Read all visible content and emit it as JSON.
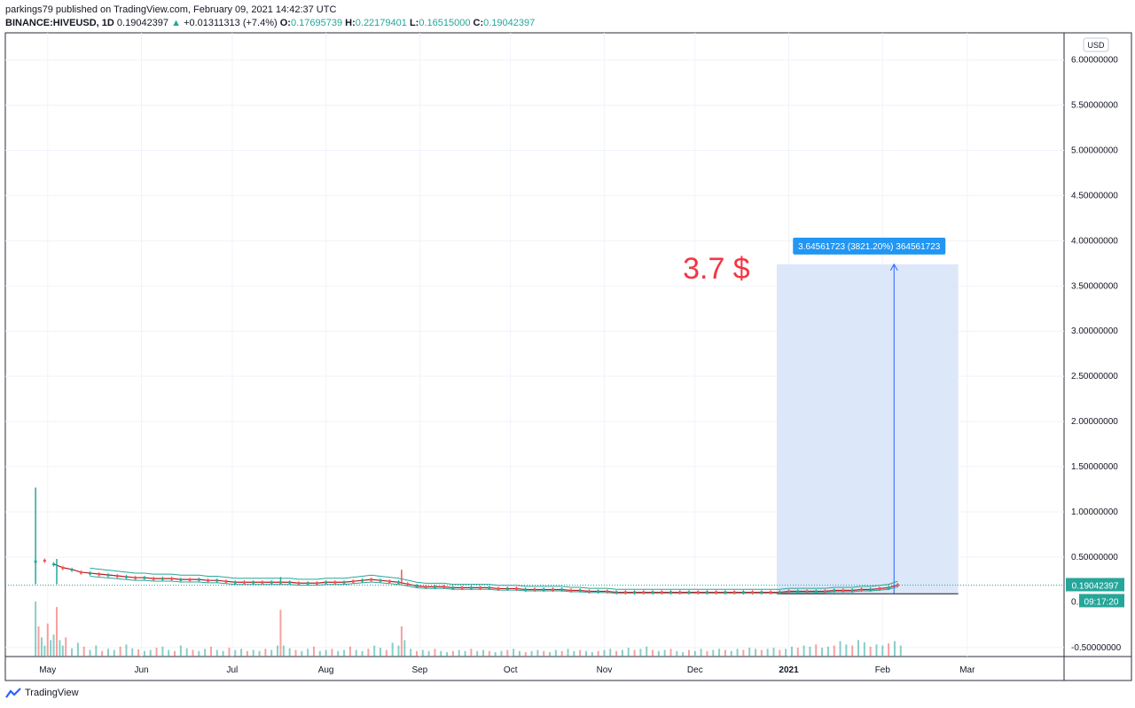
{
  "header": {
    "publisher": "parkings79 published on TradingView.com, February 09, 2021 14:42:37 UTC",
    "symbol": "BINANCE:HIVEUSD, 1D",
    "last": "0.19042397",
    "change_arrow": "▲",
    "change": "+0.01311313 (+7.4%)",
    "o_label": "O:",
    "o_value": "0.17695739",
    "h_label": "H:",
    "h_value": "0.22179401",
    "l_label": "L:",
    "l_value": "0.16515000",
    "c_label": "C:",
    "c_value": "0.19042397"
  },
  "currency_button": "USD",
  "footer": {
    "brand": "TradingView"
  },
  "colors": {
    "up": "#26a69a",
    "down": "#ef5350",
    "ma": "#b71c1c",
    "band": "#26a69a",
    "measure_fill": "#d6e4f8",
    "measure_line": "#2962ff",
    "price_tag": "#26a69a",
    "annotation": "#f23645"
  },
  "chart_data": {
    "type": "candlestick",
    "y_axis_labels": [
      "6.00000000",
      "5.50000000",
      "5.00000000",
      "4.50000000",
      "4.00000000",
      "3.50000000",
      "3.00000000",
      "2.50000000",
      "2.00000000",
      "1.50000000",
      "1.00000000",
      "0.50000000",
      "-0.50000000"
    ],
    "y_axis_values": [
      6.0,
      5.5,
      5.0,
      4.5,
      4.0,
      3.5,
      3.0,
      2.5,
      2.0,
      1.5,
      1.0,
      0.5,
      -0.5
    ],
    "ylim": [
      -0.6,
      6.3
    ],
    "x_axis_labels": [
      "May",
      "Jun",
      "Jul",
      "Aug",
      "Sep",
      "Oct",
      "Nov",
      "Dec",
      "2021",
      "Feb",
      "Mar"
    ],
    "x_axis_days": [
      4,
      35,
      65,
      96,
      127,
      157,
      188,
      218,
      249,
      280,
      308
    ],
    "xlim": [
      -10,
      340
    ],
    "price_tag": "0.19042397",
    "countdown_tag_prefix": "0.",
    "countdown": "09:17:20",
    "last_price": 0.19042397,
    "annotation_text": "3.7 $",
    "measure": {
      "label": "3.64561723 (3821.20%) 364561723",
      "day_start": 245,
      "day_end": 305,
      "from_price": 0.095,
      "to_price": 3.74
    },
    "price_series": [
      [
        0,
        0.45
      ],
      [
        3,
        0.46
      ],
      [
        6,
        0.42
      ],
      [
        9,
        0.38
      ],
      [
        12,
        0.36
      ],
      [
        15,
        0.33
      ],
      [
        18,
        0.32
      ],
      [
        21,
        0.31
      ],
      [
        24,
        0.3
      ],
      [
        27,
        0.29
      ],
      [
        30,
        0.28
      ],
      [
        33,
        0.27
      ],
      [
        36,
        0.27
      ],
      [
        39,
        0.26
      ],
      [
        42,
        0.26
      ],
      [
        45,
        0.26
      ],
      [
        48,
        0.25
      ],
      [
        51,
        0.25
      ],
      [
        54,
        0.25
      ],
      [
        57,
        0.24
      ],
      [
        60,
        0.24
      ],
      [
        63,
        0.23
      ],
      [
        66,
        0.22
      ],
      [
        69,
        0.22
      ],
      [
        72,
        0.22
      ],
      [
        75,
        0.22
      ],
      [
        78,
        0.22
      ],
      [
        81,
        0.22
      ],
      [
        84,
        0.22
      ],
      [
        87,
        0.21
      ],
      [
        90,
        0.21
      ],
      [
        93,
        0.21
      ],
      [
        96,
        0.22
      ],
      [
        99,
        0.22
      ],
      [
        102,
        0.22
      ],
      [
        105,
        0.23
      ],
      [
        108,
        0.24
      ],
      [
        111,
        0.25
      ],
      [
        114,
        0.24
      ],
      [
        117,
        0.23
      ],
      [
        120,
        0.22
      ],
      [
        123,
        0.2
      ],
      [
        126,
        0.18
      ],
      [
        129,
        0.17
      ],
      [
        132,
        0.17
      ],
      [
        135,
        0.17
      ],
      [
        138,
        0.16
      ],
      [
        141,
        0.16
      ],
      [
        144,
        0.16
      ],
      [
        147,
        0.16
      ],
      [
        150,
        0.16
      ],
      [
        153,
        0.15
      ],
      [
        156,
        0.15
      ],
      [
        159,
        0.15
      ],
      [
        162,
        0.14
      ],
      [
        165,
        0.14
      ],
      [
        168,
        0.14
      ],
      [
        171,
        0.14
      ],
      [
        174,
        0.14
      ],
      [
        177,
        0.13
      ],
      [
        180,
        0.13
      ],
      [
        183,
        0.12
      ],
      [
        186,
        0.12
      ],
      [
        189,
        0.12
      ],
      [
        192,
        0.11
      ],
      [
        195,
        0.11
      ],
      [
        198,
        0.11
      ],
      [
        201,
        0.11
      ],
      [
        204,
        0.11
      ],
      [
        207,
        0.11
      ],
      [
        210,
        0.11
      ],
      [
        213,
        0.11
      ],
      [
        216,
        0.11
      ],
      [
        219,
        0.11
      ],
      [
        222,
        0.11
      ],
      [
        225,
        0.11
      ],
      [
        228,
        0.11
      ],
      [
        231,
        0.11
      ],
      [
        234,
        0.11
      ],
      [
        237,
        0.11
      ],
      [
        240,
        0.11
      ],
      [
        243,
        0.11
      ],
      [
        246,
        0.11
      ],
      [
        249,
        0.12
      ],
      [
        252,
        0.12
      ],
      [
        255,
        0.12
      ],
      [
        258,
        0.12
      ],
      [
        261,
        0.12
      ],
      [
        264,
        0.13
      ],
      [
        267,
        0.13
      ],
      [
        270,
        0.13
      ],
      [
        273,
        0.14
      ],
      [
        276,
        0.14
      ],
      [
        279,
        0.15
      ],
      [
        282,
        0.16
      ],
      [
        285,
        0.19
      ]
    ],
    "spikes": [
      [
        0,
        1.27
      ],
      [
        7,
        0.48
      ],
      [
        81,
        0.28
      ],
      [
        121,
        0.36
      ]
    ],
    "volumes": [
      [
        0,
        1.0
      ],
      [
        1,
        0.55
      ],
      [
        2,
        0.35
      ],
      [
        3,
        0.2
      ],
      [
        4,
        0.6
      ],
      [
        5,
        0.3
      ],
      [
        6,
        0.4
      ],
      [
        7,
        0.9
      ],
      [
        8,
        0.3
      ],
      [
        9,
        0.2
      ],
      [
        10,
        0.35
      ],
      [
        12,
        0.15
      ],
      [
        14,
        0.25
      ],
      [
        16,
        0.18
      ],
      [
        18,
        0.12
      ],
      [
        20,
        0.2
      ],
      [
        22,
        0.1
      ],
      [
        24,
        0.14
      ],
      [
        26,
        0.12
      ],
      [
        28,
        0.18
      ],
      [
        30,
        0.22
      ],
      [
        32,
        0.15
      ],
      [
        34,
        0.13
      ],
      [
        36,
        0.1
      ],
      [
        38,
        0.12
      ],
      [
        40,
        0.16
      ],
      [
        42,
        0.18
      ],
      [
        44,
        0.12
      ],
      [
        46,
        0.1
      ],
      [
        48,
        0.2
      ],
      [
        50,
        0.15
      ],
      [
        52,
        0.12
      ],
      [
        54,
        0.1
      ],
      [
        56,
        0.14
      ],
      [
        58,
        0.18
      ],
      [
        60,
        0.12
      ],
      [
        62,
        0.1
      ],
      [
        64,
        0.16
      ],
      [
        66,
        0.12
      ],
      [
        68,
        0.14
      ],
      [
        70,
        0.1
      ],
      [
        72,
        0.12
      ],
      [
        74,
        0.1
      ],
      [
        76,
        0.14
      ],
      [
        78,
        0.12
      ],
      [
        80,
        0.2
      ],
      [
        81,
        0.85
      ],
      [
        82,
        0.2
      ],
      [
        84,
        0.15
      ],
      [
        86,
        0.12
      ],
      [
        88,
        0.1
      ],
      [
        90,
        0.14
      ],
      [
        92,
        0.18
      ],
      [
        94,
        0.1
      ],
      [
        96,
        0.12
      ],
      [
        98,
        0.14
      ],
      [
        100,
        0.1
      ],
      [
        102,
        0.12
      ],
      [
        104,
        0.18
      ],
      [
        106,
        0.12
      ],
      [
        108,
        0.1
      ],
      [
        110,
        0.14
      ],
      [
        112,
        0.2
      ],
      [
        114,
        0.16
      ],
      [
        116,
        0.12
      ],
      [
        118,
        0.25
      ],
      [
        120,
        0.2
      ],
      [
        121,
        0.55
      ],
      [
        122,
        0.3
      ],
      [
        124,
        0.14
      ],
      [
        126,
        0.1
      ],
      [
        128,
        0.12
      ],
      [
        130,
        0.1
      ],
      [
        132,
        0.14
      ],
      [
        134,
        0.1
      ],
      [
        136,
        0.08
      ],
      [
        138,
        0.1
      ],
      [
        140,
        0.12
      ],
      [
        142,
        0.1
      ],
      [
        144,
        0.14
      ],
      [
        146,
        0.1
      ],
      [
        148,
        0.12
      ],
      [
        150,
        0.1
      ],
      [
        152,
        0.08
      ],
      [
        154,
        0.1
      ],
      [
        156,
        0.12
      ],
      [
        158,
        0.14
      ],
      [
        160,
        0.1
      ],
      [
        162,
        0.08
      ],
      [
        164,
        0.1
      ],
      [
        166,
        0.12
      ],
      [
        168,
        0.1
      ],
      [
        170,
        0.08
      ],
      [
        172,
        0.12
      ],
      [
        174,
        0.1
      ],
      [
        176,
        0.14
      ],
      [
        178,
        0.1
      ],
      [
        180,
        0.12
      ],
      [
        182,
        0.1
      ],
      [
        184,
        0.08
      ],
      [
        186,
        0.1
      ],
      [
        188,
        0.12
      ],
      [
        190,
        0.14
      ],
      [
        192,
        0.1
      ],
      [
        194,
        0.12
      ],
      [
        196,
        0.16
      ],
      [
        198,
        0.12
      ],
      [
        200,
        0.14
      ],
      [
        202,
        0.18
      ],
      [
        204,
        0.12
      ],
      [
        206,
        0.1
      ],
      [
        208,
        0.12
      ],
      [
        210,
        0.14
      ],
      [
        212,
        0.1
      ],
      [
        214,
        0.08
      ],
      [
        216,
        0.12
      ],
      [
        218,
        0.1
      ],
      [
        220,
        0.14
      ],
      [
        222,
        0.1
      ],
      [
        224,
        0.12
      ],
      [
        226,
        0.14
      ],
      [
        228,
        0.12
      ],
      [
        230,
        0.1
      ],
      [
        232,
        0.14
      ],
      [
        234,
        0.12
      ],
      [
        236,
        0.16
      ],
      [
        238,
        0.14
      ],
      [
        240,
        0.12
      ],
      [
        242,
        0.14
      ],
      [
        244,
        0.16
      ],
      [
        246,
        0.12
      ],
      [
        248,
        0.14
      ],
      [
        250,
        0.18
      ],
      [
        252,
        0.16
      ],
      [
        254,
        0.2
      ],
      [
        256,
        0.18
      ],
      [
        258,
        0.22
      ],
      [
        260,
        0.16
      ],
      [
        262,
        0.18
      ],
      [
        264,
        0.2
      ],
      [
        266,
        0.28
      ],
      [
        268,
        0.22
      ],
      [
        270,
        0.2
      ],
      [
        272,
        0.3
      ],
      [
        274,
        0.26
      ],
      [
        276,
        0.18
      ],
      [
        278,
        0.22
      ],
      [
        280,
        0.2
      ],
      [
        282,
        0.24
      ],
      [
        284,
        0.28
      ],
      [
        286,
        0.2
      ]
    ]
  }
}
